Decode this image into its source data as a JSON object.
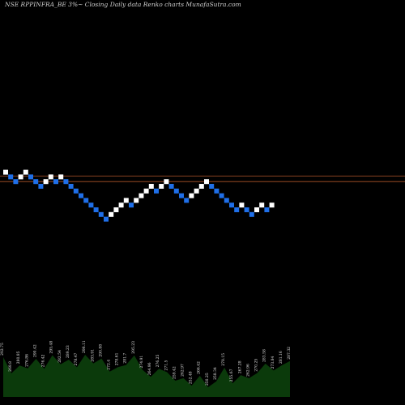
{
  "chart_data": {
    "type": "renko",
    "title": "NSE RPPINFRA_BE 3%~  Closing Daily data  Renko  charts MunafaSutra.com",
    "colors": {
      "background": "#000000",
      "up_brick": "#ffffff",
      "down_brick": "#1f6fe8",
      "reference_line": "#b0562a",
      "volume_fill": "#0b3a0b",
      "volume_label": "#e0e0e0"
    },
    "reference_lines": [
      2.2,
      1.0
    ],
    "bricks": [
      {
        "level": 3,
        "dir": "up"
      },
      {
        "level": 2,
        "dir": "down"
      },
      {
        "level": 1,
        "dir": "down"
      },
      {
        "level": 2,
        "dir": "up"
      },
      {
        "level": 3,
        "dir": "up"
      },
      {
        "level": 2,
        "dir": "down"
      },
      {
        "level": 1,
        "dir": "down"
      },
      {
        "level": 0,
        "dir": "down"
      },
      {
        "level": 1,
        "dir": "up"
      },
      {
        "level": 2,
        "dir": "up"
      },
      {
        "level": 1,
        "dir": "down"
      },
      {
        "level": 2,
        "dir": "up"
      },
      {
        "level": 1,
        "dir": "down"
      },
      {
        "level": 0,
        "dir": "down"
      },
      {
        "level": -1,
        "dir": "down"
      },
      {
        "level": -2,
        "dir": "down"
      },
      {
        "level": -3,
        "dir": "down"
      },
      {
        "level": -4,
        "dir": "down"
      },
      {
        "level": -5,
        "dir": "down"
      },
      {
        "level": -6,
        "dir": "down"
      },
      {
        "level": -7,
        "dir": "down"
      },
      {
        "level": -6,
        "dir": "up"
      },
      {
        "level": -5,
        "dir": "up"
      },
      {
        "level": -4,
        "dir": "up"
      },
      {
        "level": -3,
        "dir": "up"
      },
      {
        "level": -4,
        "dir": "down"
      },
      {
        "level": -3,
        "dir": "up"
      },
      {
        "level": -2,
        "dir": "up"
      },
      {
        "level": -1,
        "dir": "up"
      },
      {
        "level": 0,
        "dir": "up"
      },
      {
        "level": -1,
        "dir": "down"
      },
      {
        "level": 0,
        "dir": "up"
      },
      {
        "level": 1,
        "dir": "up"
      },
      {
        "level": 0,
        "dir": "down"
      },
      {
        "level": -1,
        "dir": "down"
      },
      {
        "level": -2,
        "dir": "down"
      },
      {
        "level": -3,
        "dir": "down"
      },
      {
        "level": -2,
        "dir": "up"
      },
      {
        "level": -1,
        "dir": "up"
      },
      {
        "level": 0,
        "dir": "up"
      },
      {
        "level": 1,
        "dir": "up"
      },
      {
        "level": 0,
        "dir": "down"
      },
      {
        "level": -1,
        "dir": "down"
      },
      {
        "level": -2,
        "dir": "down"
      },
      {
        "level": -3,
        "dir": "down"
      },
      {
        "level": -4,
        "dir": "down"
      },
      {
        "level": -5,
        "dir": "down"
      },
      {
        "level": -4,
        "dir": "up"
      },
      {
        "level": -5,
        "dir": "down"
      },
      {
        "level": -6,
        "dir": "down"
      },
      {
        "level": -5,
        "dir": "up"
      },
      {
        "level": -4,
        "dir": "up"
      },
      {
        "level": -5,
        "dir": "down"
      },
      {
        "level": -4,
        "dir": "up"
      }
    ],
    "volume_labels": [
      "292.75",
      "269.8",
      "280.85",
      "276.86",
      "290.42",
      "276.42",
      "295.48",
      "282.54",
      "289.23",
      "278.47",
      "296.11",
      "283.91",
      "290.88",
      "272.4",
      "278.61",
      "281.7",
      "295.23",
      "274.91",
      "264.96",
      "276.25",
      "271.5",
      "259.42",
      "262.97",
      "252.48",
      "266.42",
      "250.25",
      "258.34",
      "278.15",
      "255.67",
      "267.28",
      "262.96",
      "270.25",
      "283.58",
      "273.84",
      "281.16",
      "287.32"
    ]
  }
}
